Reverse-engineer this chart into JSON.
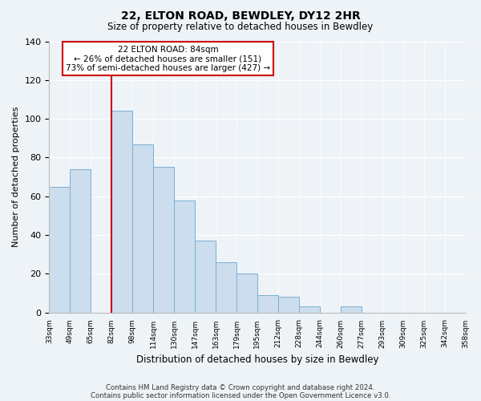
{
  "title": "22, ELTON ROAD, BEWDLEY, DY12 2HR",
  "subtitle": "Size of property relative to detached houses in Bewdley",
  "xlabel": "Distribution of detached houses by size in Bewdley",
  "ylabel": "Number of detached properties",
  "bin_labels": [
    "33sqm",
    "49sqm",
    "65sqm",
    "82sqm",
    "98sqm",
    "114sqm",
    "130sqm",
    "147sqm",
    "163sqm",
    "179sqm",
    "195sqm",
    "212sqm",
    "228sqm",
    "244sqm",
    "260sqm",
    "277sqm",
    "293sqm",
    "309sqm",
    "325sqm",
    "342sqm",
    "358sqm"
  ],
  "bar_values": [
    65,
    74,
    0,
    104,
    87,
    75,
    58,
    37,
    26,
    20,
    9,
    8,
    3,
    0,
    3,
    0,
    0,
    0,
    0,
    0
  ],
  "bar_color": "#ccdded",
  "bar_edge_color": "#7aafd4",
  "vline_x_index": 3,
  "vline_color": "#cc0000",
  "ylim": [
    0,
    140
  ],
  "yticks": [
    0,
    20,
    40,
    60,
    80,
    100,
    120,
    140
  ],
  "annotation_title": "22 ELTON ROAD: 84sqm",
  "annotation_line1": "← 26% of detached houses are smaller (151)",
  "annotation_line2": "73% of semi-detached houses are larger (427) →",
  "annotation_box_facecolor": "#ffffff",
  "annotation_box_edgecolor": "#cc0000",
  "footer_line1": "Contains HM Land Registry data © Crown copyright and database right 2024.",
  "footer_line2": "Contains public sector information licensed under the Open Government Licence v3.0.",
  "background_color": "#eef3f8",
  "grid_color": "#ffffff"
}
